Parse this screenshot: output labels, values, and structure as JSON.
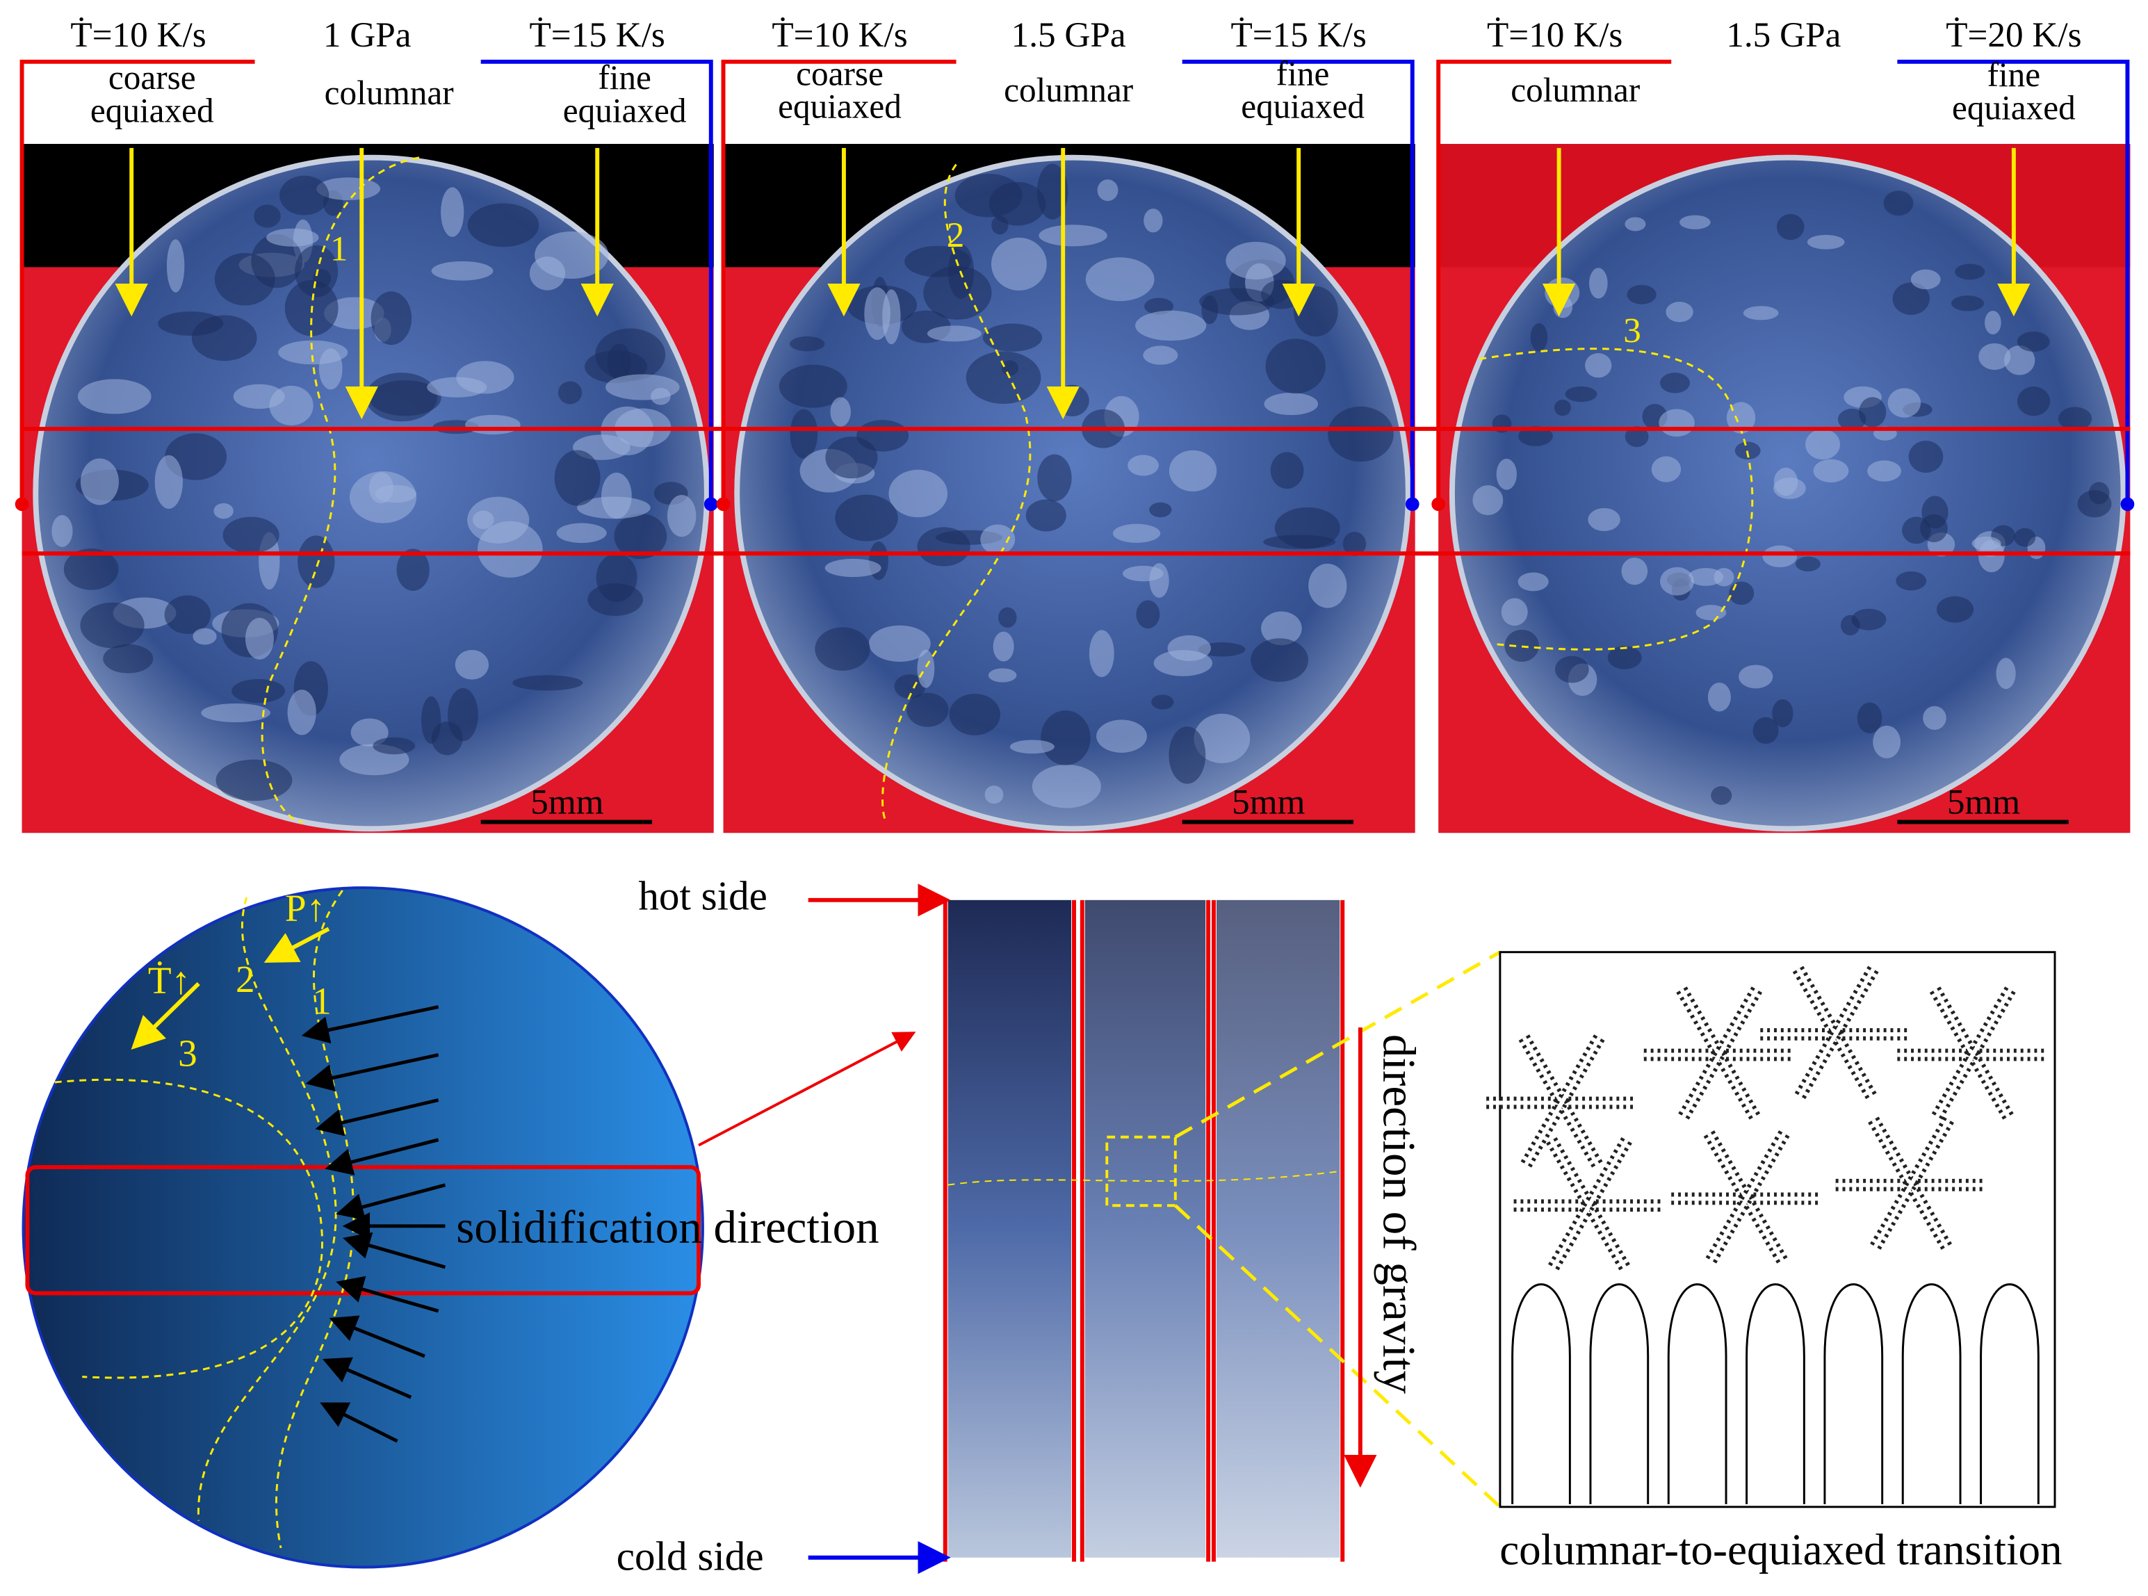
{
  "panels": [
    {
      "left_rate": "Ṫ=10 K/s",
      "pressure": "1 GPa",
      "right_rate": "Ṫ=15 K/s",
      "labels": [
        {
          "lines": [
            "coarse",
            "equiaxed"
          ]
        },
        {
          "lines": [
            "columnar"
          ]
        },
        {
          "lines": [
            "fine",
            "equiaxed"
          ]
        }
      ],
      "region": "1",
      "scale_bar": "5mm"
    },
    {
      "left_rate": "Ṫ=10 K/s",
      "pressure": "1.5 GPa",
      "right_rate": "Ṫ=15 K/s",
      "labels": [
        {
          "lines": [
            "coarse",
            "equiaxed"
          ]
        },
        {
          "lines": [
            "columnar"
          ]
        },
        {
          "lines": [
            "fine",
            "equiaxed"
          ]
        }
      ],
      "region": "2",
      "scale_bar": "5mm"
    },
    {
      "left_rate": "Ṫ=10 K/s",
      "pressure": "1.5 GPa",
      "right_rate": "Ṫ=20 K/s",
      "labels": [
        {
          "lines": [
            "columnar"
          ]
        },
        {
          "lines": [
            "fine",
            "equiaxed"
          ]
        }
      ],
      "region": "3",
      "scale_bar": "5mm"
    }
  ],
  "schematic": {
    "regions": [
      "1",
      "2",
      "3"
    ],
    "pressure_arrow": "P↑",
    "rate_arrow": "Ṫ↑",
    "solidification": "solidification direction"
  },
  "strips": {
    "hot_side": "hot side",
    "cold_side": "cold side",
    "gravity": "direction of gravity"
  },
  "transition": "columnar-to-equiaxed transition"
}
